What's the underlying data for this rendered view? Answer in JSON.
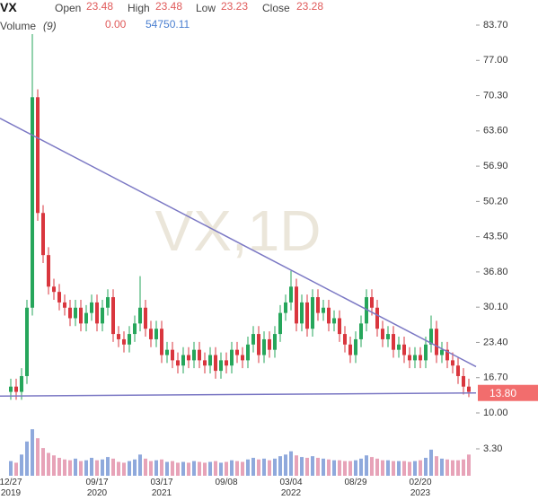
{
  "header": {
    "symbol": "VX",
    "open_label": "Open",
    "open": "23.48",
    "high_label": "High",
    "high": "23.48",
    "low_label": "Low",
    "low": "23.23",
    "close_label": "Close",
    "close": "23.28",
    "volume_label": "Volume",
    "volume_period": "(9)",
    "volume_values": [
      "0.00",
      "54750.11"
    ]
  },
  "chart_data": {
    "type": "candlestick",
    "watermark": "VX,1D",
    "categories": [
      "12/27\n2019",
      null,
      null,
      null,
      null,
      null,
      null,
      null,
      null,
      null,
      null,
      null,
      null,
      null,
      null,
      null,
      "09/17\n2020",
      null,
      null,
      null,
      null,
      null,
      null,
      null,
      null,
      null,
      null,
      null,
      "03/17\n2021",
      null,
      null,
      null,
      null,
      null,
      null,
      null,
      null,
      null,
      null,
      null,
      "09/08",
      null,
      null,
      null,
      null,
      null,
      null,
      null,
      null,
      null,
      null,
      null,
      "03/04\n2022",
      null,
      null,
      null,
      null,
      null,
      null,
      null,
      null,
      null,
      null,
      null,
      "08/29",
      null,
      null,
      null,
      null,
      null,
      null,
      null,
      null,
      null,
      null,
      null,
      "02/20\n2023",
      null,
      null,
      null,
      null,
      null,
      null,
      null,
      null,
      null
    ],
    "series": [
      {
        "name": "VX",
        "up_color": "#26a65b",
        "down_color": "#d9363e",
        "open": [
          14,
          15,
          14,
          17,
          30,
          70,
          48,
          40,
          34,
          33,
          31,
          30,
          28,
          30,
          27,
          29,
          31,
          27,
          30,
          32,
          25,
          24,
          23,
          25,
          27,
          30,
          26,
          24,
          26,
          21,
          22,
          20,
          19,
          21,
          20,
          22,
          20,
          19,
          21,
          18,
          20,
          19,
          22,
          21,
          20,
          23,
          25,
          21,
          24,
          22,
          25,
          29,
          31,
          34,
          27,
          31,
          26,
          32,
          29,
          30,
          27,
          28,
          25,
          23,
          21,
          24,
          27,
          32,
          30,
          26,
          24,
          25,
          22,
          23,
          21,
          20,
          21,
          20,
          23,
          26,
          21,
          22,
          20,
          19,
          17,
          15
        ],
        "high": [
          16.5,
          16.5,
          18.5,
          31.5,
          82,
          71.5,
          49.5,
          41.5,
          35.5,
          34.5,
          32.5,
          31.5,
          31.5,
          31.5,
          30.5,
          32.5,
          32.5,
          31.5,
          33.5,
          33.5,
          26.5,
          25.5,
          26.5,
          28.5,
          36,
          31.5,
          27.5,
          27.5,
          27.5,
          23.5,
          23.5,
          21.5,
          22.5,
          22.5,
          23.5,
          23.5,
          21.5,
          22.5,
          22.5,
          21.5,
          21.5,
          23.5,
          23.5,
          22.5,
          24.5,
          26.5,
          26.5,
          25.5,
          25.5,
          26.5,
          30.5,
          32.5,
          37,
          35.5,
          32.5,
          32.5,
          33.5,
          33.5,
          31.5,
          31.5,
          29.5,
          29.5,
          26.5,
          24.5,
          25.5,
          28.5,
          33.5,
          33.5,
          31.5,
          27.5,
          26.5,
          26.5,
          24.5,
          24.5,
          22.5,
          22.5,
          22.5,
          24.5,
          28.5,
          27.5,
          23.5,
          23.5,
          21.5,
          20.5,
          18.5,
          16.5
        ],
        "low": [
          12.5,
          12.5,
          12.5,
          15.5,
          28.5,
          46.5,
          38.5,
          32.5,
          31.5,
          29.5,
          28.5,
          26.5,
          26.5,
          25.5,
          25.5,
          27.5,
          25.5,
          25.5,
          28.5,
          23.5,
          22.5,
          21.5,
          21.5,
          23.5,
          25.5,
          24.5,
          22.5,
          22.5,
          19.5,
          19.5,
          18.5,
          17.5,
          17.5,
          18.5,
          18.5,
          18.5,
          17.5,
          17.5,
          16.5,
          16.5,
          17.5,
          17.5,
          19.5,
          18.5,
          18.5,
          21.5,
          19.5,
          19.5,
          20.5,
          20.5,
          23.5,
          27.5,
          29.5,
          25.5,
          25.5,
          24.5,
          24.5,
          27.5,
          27.5,
          25.5,
          25.5,
          23.5,
          21.5,
          19.5,
          19.5,
          22.5,
          25.5,
          28.5,
          24.5,
          22.5,
          22.5,
          20.5,
          20.5,
          19.5,
          18.5,
          18.5,
          18.5,
          18.5,
          21.5,
          19.5,
          19.5,
          18.5,
          17.5,
          15.5,
          13.5,
          13
        ],
        "close": [
          15,
          14,
          17,
          30,
          70,
          48,
          40,
          34,
          33,
          31,
          30,
          28,
          30,
          27,
          29,
          31,
          27,
          30,
          32,
          25,
          24,
          23,
          25,
          27,
          30,
          26,
          24,
          26,
          21,
          22,
          20,
          19,
          21,
          20,
          22,
          20,
          19,
          21,
          18,
          20,
          19,
          22,
          21,
          20,
          23,
          25,
          21,
          24,
          22,
          25,
          29,
          31,
          34,
          27,
          31,
          26,
          32,
          29,
          30,
          27,
          28,
          25,
          23,
          21,
          24,
          27,
          32,
          30,
          26,
          24,
          25,
          22,
          23,
          21,
          20,
          21,
          20,
          23,
          26,
          21,
          22,
          20,
          19,
          17,
          15,
          14
        ]
      }
    ],
    "ylim": [
      10,
      83.7
    ],
    "yticks": [
      {
        "value": 83.7,
        "label": "83.70"
      },
      {
        "value": 77,
        "label": "77.00"
      },
      {
        "value": 70.3,
        "label": "70.30"
      },
      {
        "value": 63.6,
        "label": "63.60"
      },
      {
        "value": 56.9,
        "label": "56.90"
      },
      {
        "value": 50.2,
        "label": "50.20"
      },
      {
        "value": 43.5,
        "label": "43.50"
      },
      {
        "value": 36.8,
        "label": "36.80"
      },
      {
        "value": 30.1,
        "label": "30.10"
      },
      {
        "value": 23.4,
        "label": "23.40"
      },
      {
        "value": 16.7,
        "label": "16.70"
      },
      {
        "value": 10,
        "label": "10.00"
      }
    ],
    "volume": {
      "up_color": "#8fa9dc",
      "down_color": "#e7a3b8",
      "values": [
        1.8,
        1.6,
        2.6,
        4.2,
        5.7,
        4.6,
        3.4,
        2.8,
        2.5,
        2.2,
        2.0,
        1.9,
        2.1,
        1.8,
        1.9,
        2.2,
        1.9,
        2.0,
        2.3,
        2.1,
        1.7,
        1.6,
        1.8,
        2.0,
        2.6,
        2.1,
        1.8,
        1.9,
        2.0,
        1.7,
        1.8,
        1.6,
        1.7,
        1.6,
        1.8,
        1.7,
        1.6,
        1.7,
        1.8,
        1.6,
        1.7,
        1.9,
        1.8,
        1.7,
        2.0,
        2.2,
        2.0,
        2.1,
        1.9,
        2.1,
        2.4,
        2.6,
        3.0,
        2.5,
        2.3,
        2.2,
        2.4,
        2.2,
        2.1,
        2.0,
        1.9,
        1.9,
        1.8,
        1.8,
        1.9,
        2.1,
        2.5,
        2.3,
        2.1,
        1.9,
        1.9,
        1.8,
        1.8,
        1.8,
        1.7,
        1.8,
        1.9,
        2.2,
        3.2,
        2.4,
        2.1,
        2.0,
        1.9,
        1.9,
        2.0,
        2.6
      ],
      "ylim": [
        0,
        6.6
      ],
      "yticks": [
        {
          "value": 3.3,
          "label": "3.30"
        }
      ]
    },
    "trendlines": [
      {
        "start": 66,
        "end": 18.8,
        "color": "#7b78c4"
      },
      {
        "start": 13.2,
        "end": 13.8,
        "color": "#7b78c4"
      }
    ],
    "last_price": {
      "value": 13.8,
      "label": "13.80",
      "color": "#f26d6d"
    }
  }
}
